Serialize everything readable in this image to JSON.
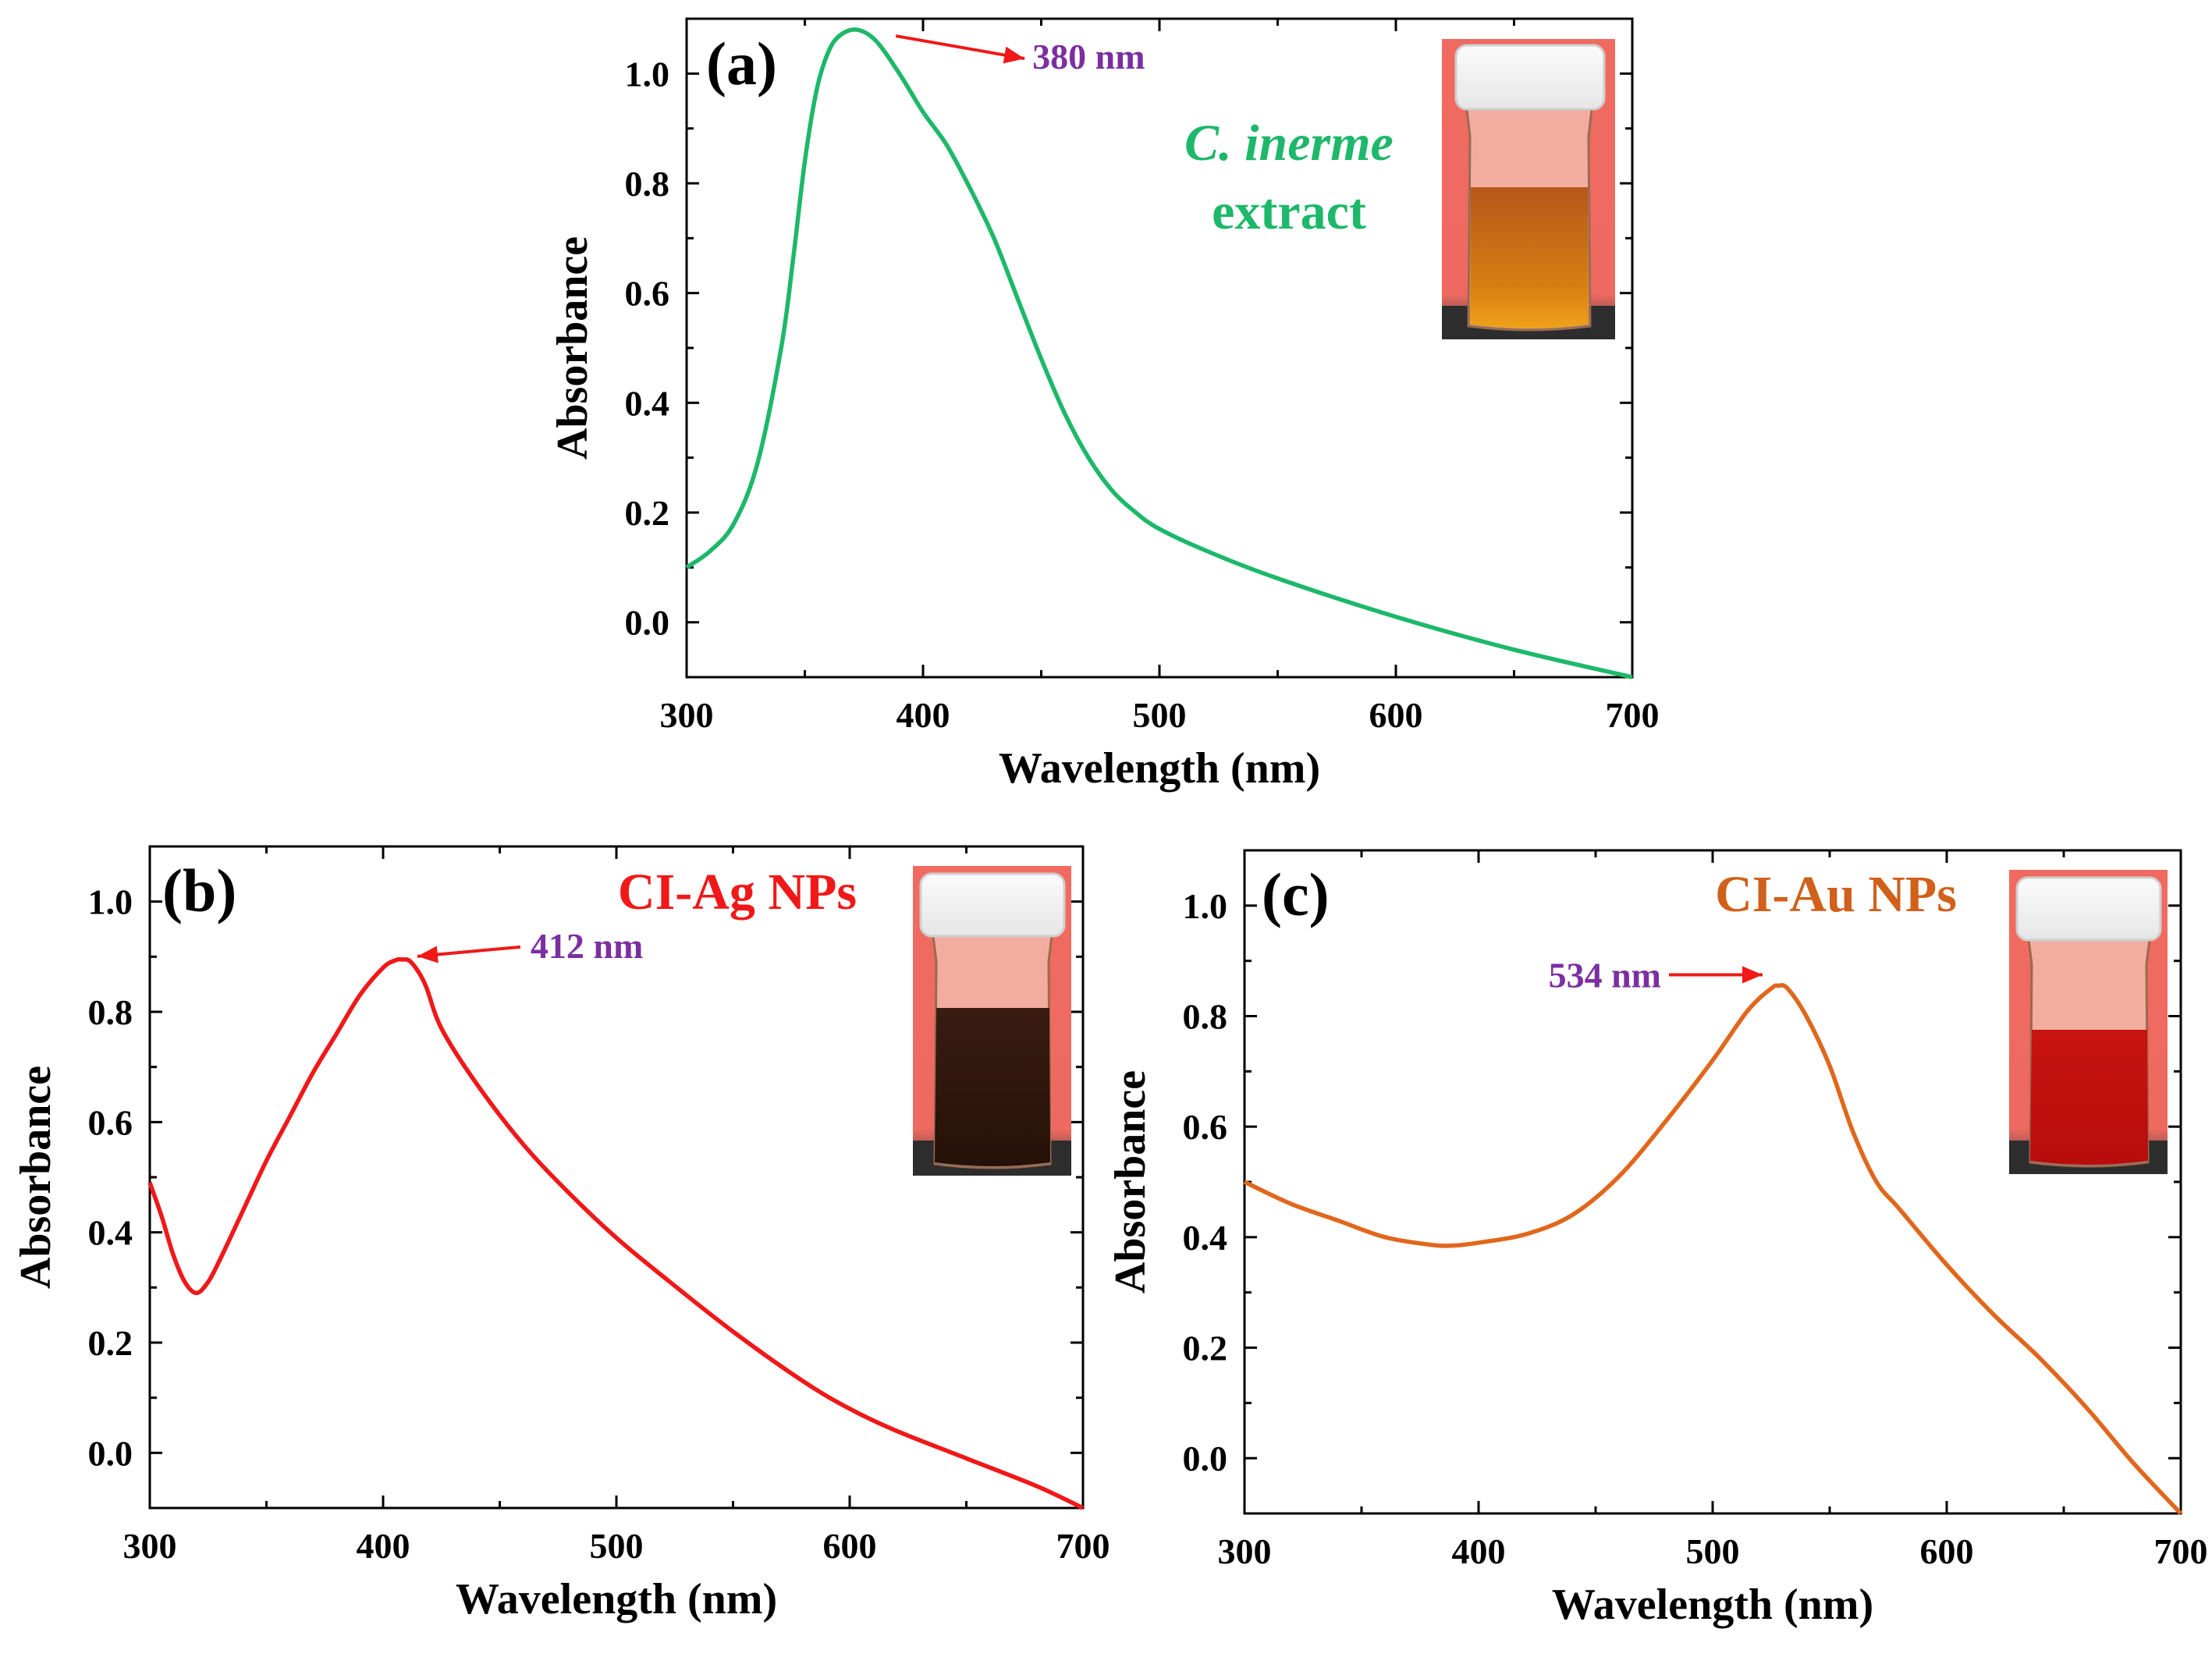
{
  "chart_data": [
    {
      "panel": "(a)",
      "type": "line",
      "xlabel": "Wavelength (nm)",
      "ylabel": "Absorbance",
      "xlim": [
        300,
        700
      ],
      "ylim": [
        -0.1,
        1.1
      ],
      "xticks": [
        "300",
        "400",
        "500",
        "600",
        "700"
      ],
      "yticks": [
        "0.0",
        "0.2",
        "0.4",
        "0.6",
        "0.8",
        "1.0"
      ],
      "line_color": "#1db86a",
      "sample_label_lines": [
        "C. inerme",
        "extract"
      ],
      "sample_label_color": "#1db86a",
      "peak_annotation": {
        "text": "380 nm",
        "x": 372,
        "y": 1.08
      },
      "series": [
        {
          "name": "C. inerme extract",
          "x": [
            300,
            310,
            320,
            330,
            340,
            345,
            350,
            355,
            360,
            365,
            372,
            380,
            390,
            400,
            410,
            420,
            430,
            440,
            450,
            460,
            470,
            480,
            490,
            500,
            520,
            550,
            600,
            650,
            700
          ],
          "y": [
            0.1,
            0.13,
            0.18,
            0.29,
            0.5,
            0.66,
            0.84,
            0.97,
            1.04,
            1.07,
            1.08,
            1.06,
            1.0,
            0.93,
            0.87,
            0.79,
            0.7,
            0.59,
            0.48,
            0.38,
            0.3,
            0.24,
            0.2,
            0.17,
            0.13,
            0.08,
            0.01,
            -0.05,
            -0.1
          ]
        }
      ]
    },
    {
      "panel": "(b)",
      "type": "line",
      "xlabel": "Wavelength (nm)",
      "ylabel": "Absorbance",
      "xlim": [
        300,
        700
      ],
      "ylim": [
        -0.1,
        1.1
      ],
      "xticks": [
        "300",
        "400",
        "500",
        "600",
        "700"
      ],
      "yticks": [
        "0.0",
        "0.2",
        "0.4",
        "0.6",
        "0.8",
        "1.0"
      ],
      "line_color": "#f01818",
      "sample_label_lines": [
        "CI-Ag NPs"
      ],
      "sample_label_color": "#f01818",
      "peak_annotation": {
        "text": "412 nm",
        "x": 408,
        "y": 0.895
      },
      "series": [
        {
          "name": "CI-Ag NPs",
          "x": [
            300,
            305,
            310,
            315,
            320,
            325,
            330,
            340,
            350,
            360,
            370,
            380,
            390,
            400,
            405,
            408,
            412,
            418,
            425,
            440,
            460,
            480,
            500,
            520,
            550,
            580,
            600,
            620,
            650,
            680,
            700
          ],
          "y": [
            0.49,
            0.43,
            0.36,
            0.31,
            0.29,
            0.31,
            0.35,
            0.44,
            0.53,
            0.61,
            0.69,
            0.76,
            0.83,
            0.88,
            0.893,
            0.895,
            0.89,
            0.85,
            0.77,
            0.67,
            0.56,
            0.47,
            0.39,
            0.32,
            0.22,
            0.13,
            0.08,
            0.04,
            -0.01,
            -0.06,
            -0.1
          ]
        }
      ]
    },
    {
      "panel": "(c)",
      "type": "line",
      "xlabel": "Wavelength (nm)",
      "ylabel": "Absorbance",
      "xlim": [
        300,
        700
      ],
      "ylim": [
        -0.1,
        1.1
      ],
      "xticks": [
        "300",
        "400",
        "500",
        "600",
        "700"
      ],
      "yticks": [
        "0.0",
        "0.2",
        "0.4",
        "0.6",
        "0.8",
        "1.0"
      ],
      "line_color": "#e0671c",
      "sample_label_lines": [
        "CI-Au NPs"
      ],
      "sample_label_color": "#d0601a",
      "peak_annotation": {
        "text": "534 nm",
        "x": 528,
        "y": 0.855
      },
      "series": [
        {
          "name": "CI-Au NPs",
          "x": [
            300,
            320,
            340,
            360,
            380,
            390,
            400,
            420,
            440,
            460,
            480,
            500,
            515,
            525,
            528,
            532,
            540,
            550,
            560,
            570,
            580,
            600,
            620,
            640,
            660,
            680,
            700
          ],
          "y": [
            0.5,
            0.46,
            0.43,
            0.4,
            0.386,
            0.385,
            0.39,
            0.405,
            0.44,
            0.51,
            0.61,
            0.72,
            0.81,
            0.85,
            0.855,
            0.85,
            0.8,
            0.71,
            0.59,
            0.5,
            0.45,
            0.35,
            0.26,
            0.18,
            0.09,
            -0.01,
            -0.1
          ]
        }
      ]
    }
  ]
}
